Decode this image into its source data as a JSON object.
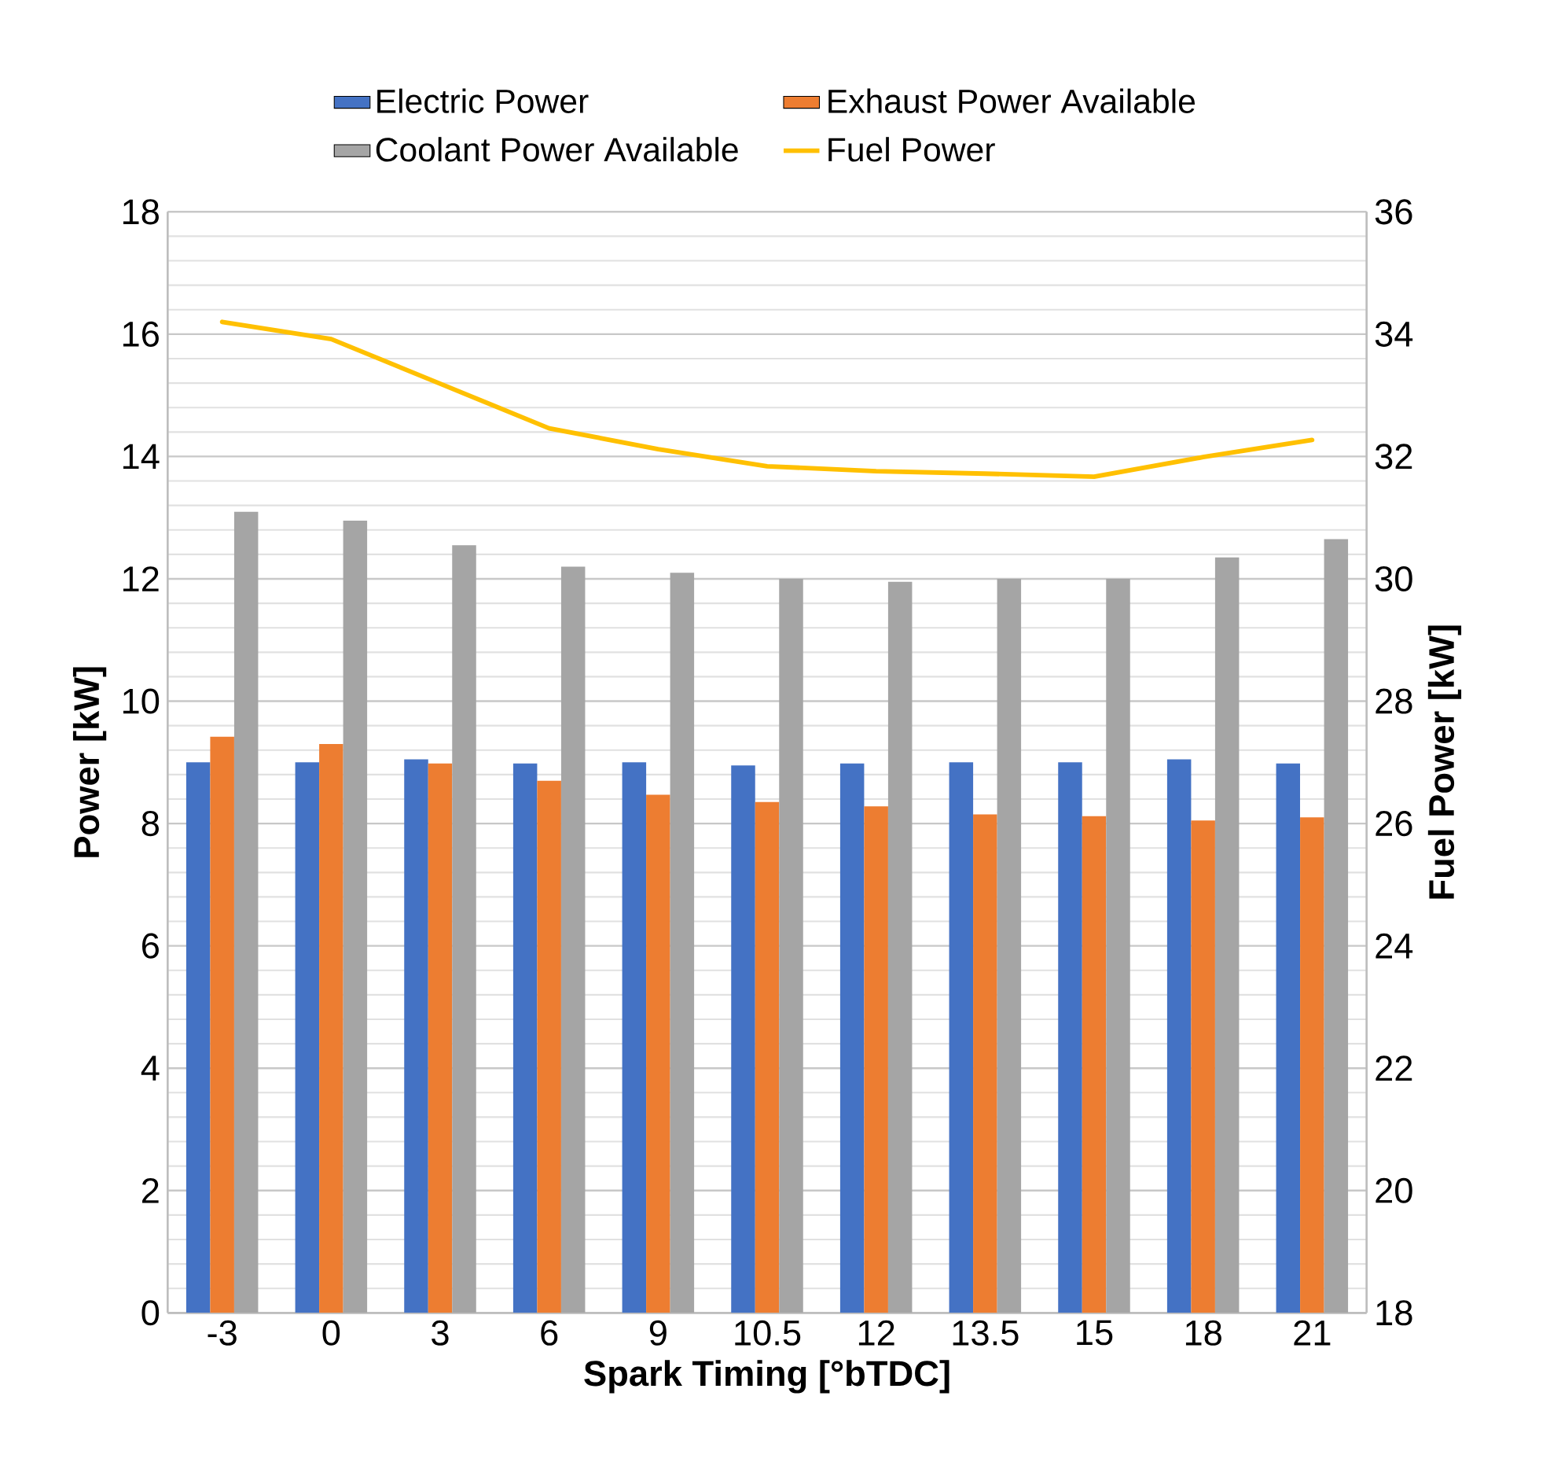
{
  "chart_data": {
    "type": "bar",
    "xlabel": "Spark Timing [°bTDC]",
    "ylabel": "Power [kW]",
    "y2label": "Fuel Power [kW]",
    "categories": [
      "-3",
      "0",
      "3",
      "6",
      "9",
      "10.5",
      "12",
      "13.5",
      "15",
      "18",
      "21"
    ],
    "series": [
      {
        "name": "Electric Power",
        "color": "#4472c4",
        "values": [
          9.0,
          9.0,
          9.05,
          8.98,
          9.0,
          8.95,
          8.98,
          9.0,
          9.0,
          9.05,
          8.98
        ]
      },
      {
        "name": "Exhaust Power Available",
        "color": "#ed7d31",
        "values": [
          9.42,
          9.3,
          8.98,
          8.7,
          8.47,
          8.35,
          8.28,
          8.15,
          8.12,
          8.05,
          8.1
        ]
      },
      {
        "name": "Coolant Power Available",
        "color": "#a5a5a5",
        "values": [
          13.1,
          12.95,
          12.55,
          12.2,
          12.1,
          12.0,
          11.95,
          12.0,
          12.0,
          12.35,
          12.65
        ]
      },
      {
        "name": "Fuel Power",
        "type": "line",
        "axis": "y2",
        "color": "#ffc000",
        "values": [
          34.2,
          33.92,
          33.19,
          32.46,
          32.12,
          31.84,
          31.76,
          31.72,
          31.67,
          31.99,
          32.27
        ]
      }
    ],
    "ylim": [
      0,
      18
    ],
    "yticks": [
      0,
      2,
      4,
      6,
      8,
      10,
      12,
      14,
      16,
      18
    ],
    "y2lim": [
      18,
      36
    ],
    "y2ticks": [
      18,
      20,
      22,
      24,
      26,
      28,
      30,
      32,
      34,
      36
    ],
    "grid": "y",
    "legend": "top",
    "marker": "none",
    "line_style": "solid"
  }
}
